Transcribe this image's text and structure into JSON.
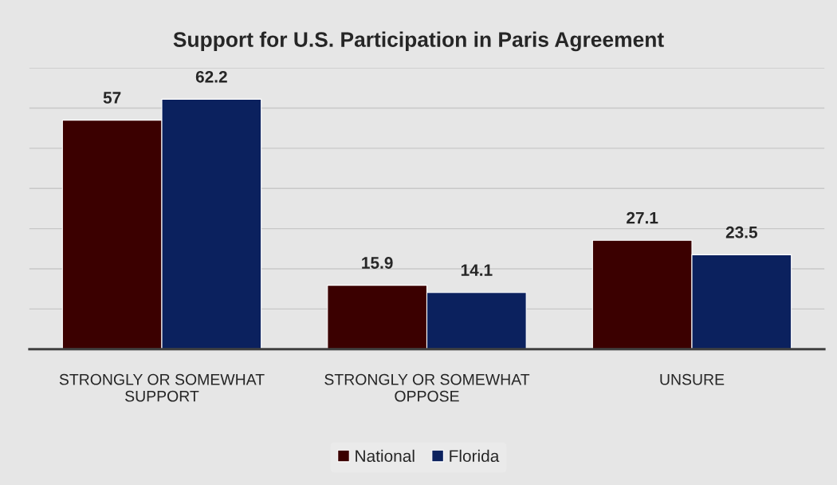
{
  "chart_data": {
    "type": "bar",
    "title": "Support for U.S. Participation in Paris Agreement",
    "categories": [
      "STRONGLY OR SOMEWHAT SUPPORT",
      "STRONGLY OR SOMEWHAT OPPOSE",
      "UNSURE"
    ],
    "series": [
      {
        "name": "National",
        "color": "#3b0000",
        "values": [
          57,
          15.9,
          27.1
        ]
      },
      {
        "name": "Florida",
        "color": "#0b215e",
        "values": [
          62.2,
          14.1,
          23.5
        ]
      }
    ],
    "ylim": [
      0,
      70
    ],
    "yticks": [
      {
        "value": 0,
        "label": null
      },
      {
        "value": 10,
        "label": null
      },
      {
        "value": 20,
        "label": null
      },
      {
        "value": 30,
        "label": null
      },
      {
        "value": 40,
        "label": null
      },
      {
        "value": 50,
        "label": null
      },
      {
        "value": 60,
        "label": null
      },
      {
        "value": 70,
        "label": null
      }
    ],
    "tick_labels": "x",
    "grid": "y",
    "legend": "bottom",
    "data_labels": true
  }
}
